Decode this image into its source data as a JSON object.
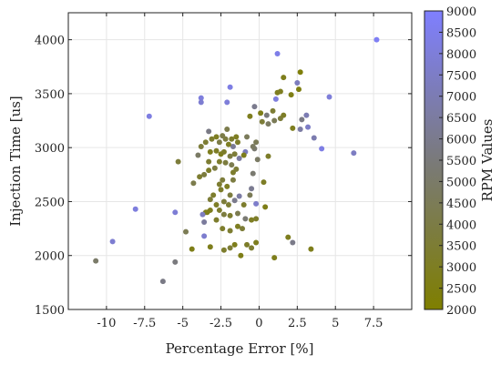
{
  "chart_data": {
    "type": "scatter",
    "xlabel": "Percentage Error [%]",
    "ylabel": "Injection Time [us]",
    "colorbar_label": "RPM Values",
    "xlim": [
      -12.5,
      10
    ],
    "ylim": [
      1500,
      4250
    ],
    "x_ticks": [
      -10,
      -7.5,
      -5,
      -2.5,
      0,
      2.5,
      5,
      7.5
    ],
    "x_tick_labels": [
      "-10",
      "-7.5",
      "-5",
      "-2.5",
      "0",
      "2.5",
      "5",
      "7.5"
    ],
    "y_ticks": [
      1500,
      2000,
      2500,
      3000,
      3500,
      4000
    ],
    "y_tick_labels": [
      "1500",
      "2000",
      "2500",
      "3000",
      "3500",
      "4000"
    ],
    "color_range": [
      2000,
      9000
    ],
    "colorbar_ticks": [
      2000,
      2500,
      3000,
      3500,
      4000,
      4500,
      5000,
      5500,
      6000,
      6500,
      7000,
      7500,
      8000,
      8500,
      9000
    ],
    "colorbar_tick_labels": [
      "2000",
      "2500",
      "3000",
      "3500",
      "4000",
      "4500",
      "5000",
      "5500",
      "6000",
      "6500",
      "7000",
      "7500",
      "8000",
      "8500",
      "9000"
    ],
    "colormap": {
      "low": "#7f7f00",
      "mid": "#7a7a7a",
      "high": "#7f7fff"
    },
    "grid": true,
    "points": [
      {
        "x": 7.7,
        "y": 4000,
        "c": 8700
      },
      {
        "x": 1.2,
        "y": 3870,
        "c": 8400
      },
      {
        "x": -1.9,
        "y": 3560,
        "c": 8300
      },
      {
        "x": -2.1,
        "y": 3420,
        "c": 8000
      },
      {
        "x": -3.8,
        "y": 3460,
        "c": 8100
      },
      {
        "x": -3.8,
        "y": 3420,
        "c": 7800
      },
      {
        "x": -7.2,
        "y": 3290,
        "c": 8200
      },
      {
        "x": 4.6,
        "y": 3470,
        "c": 8000
      },
      {
        "x": 2.5,
        "y": 3600,
        "c": 7300
      },
      {
        "x": 2.7,
        "y": 3700,
        "c": 2300
      },
      {
        "x": 2.6,
        "y": 3540,
        "c": 2500
      },
      {
        "x": 1.6,
        "y": 3650,
        "c": 2800
      },
      {
        "x": 1.2,
        "y": 3510,
        "c": 2900
      },
      {
        "x": 1.4,
        "y": 3520,
        "c": 3000
      },
      {
        "x": 1.1,
        "y": 3450,
        "c": 8100
      },
      {
        "x": 2.1,
        "y": 3490,
        "c": 2600
      },
      {
        "x": 0.9,
        "y": 3340,
        "c": 3500
      },
      {
        "x": 0.5,
        "y": 3300,
        "c": 5500
      },
      {
        "x": 0.1,
        "y": 3320,
        "c": 2700
      },
      {
        "x": -0.3,
        "y": 3380,
        "c": 6000
      },
      {
        "x": -0.6,
        "y": 3290,
        "c": 2900
      },
      {
        "x": 0.2,
        "y": 3240,
        "c": 3600
      },
      {
        "x": 0.6,
        "y": 3220,
        "c": 4800
      },
      {
        "x": 1.0,
        "y": 3250,
        "c": 4500
      },
      {
        "x": 1.4,
        "y": 3270,
        "c": 3700
      },
      {
        "x": 1.6,
        "y": 3300,
        "c": 3100
      },
      {
        "x": 2.2,
        "y": 3180,
        "c": 2900
      },
      {
        "x": 2.7,
        "y": 3170,
        "c": 6600
      },
      {
        "x": 3.2,
        "y": 3190,
        "c": 7500
      },
      {
        "x": 3.1,
        "y": 3300,
        "c": 7000
      },
      {
        "x": 2.8,
        "y": 3260,
        "c": 5800
      },
      {
        "x": 3.6,
        "y": 3090,
        "c": 6900
      },
      {
        "x": 4.1,
        "y": 2990,
        "c": 8300
      },
      {
        "x": 6.2,
        "y": 2950,
        "c": 7400
      },
      {
        "x": -0.2,
        "y": 3050,
        "c": 4500
      },
      {
        "x": -0.3,
        "y": 2990,
        "c": 5200
      },
      {
        "x": -0.4,
        "y": 3010,
        "c": 4800
      },
      {
        "x": -0.9,
        "y": 2960,
        "c": 7200
      },
      {
        "x": -0.8,
        "y": 3100,
        "c": 4600
      },
      {
        "x": -1.4,
        "y": 3050,
        "c": 3200
      },
      {
        "x": -1.5,
        "y": 3100,
        "c": 3000
      },
      {
        "x": -1.7,
        "y": 3010,
        "c": 6200
      },
      {
        "x": -1.8,
        "y": 3080,
        "c": 3300
      },
      {
        "x": -2.0,
        "y": 3030,
        "c": 3000
      },
      {
        "x": -2.1,
        "y": 3170,
        "c": 4200
      },
      {
        "x": -2.2,
        "y": 3080,
        "c": 3800
      },
      {
        "x": -2.4,
        "y": 3110,
        "c": 4100
      },
      {
        "x": -2.6,
        "y": 3050,
        "c": 4000
      },
      {
        "x": -2.8,
        "y": 3100,
        "c": 3000
      },
      {
        "x": -3.1,
        "y": 3080,
        "c": 3300
      },
      {
        "x": -3.3,
        "y": 3150,
        "c": 5800
      },
      {
        "x": -3.5,
        "y": 3050,
        "c": 3500
      },
      {
        "x": -3.8,
        "y": 3010,
        "c": 3700
      },
      {
        "x": -3.2,
        "y": 2960,
        "c": 2900
      },
      {
        "x": -2.8,
        "y": 2970,
        "c": 3100
      },
      {
        "x": -2.5,
        "y": 2940,
        "c": 2800
      },
      {
        "x": -2.3,
        "y": 2960,
        "c": 3200
      },
      {
        "x": -1.9,
        "y": 2920,
        "c": 3900
      },
      {
        "x": -1.6,
        "y": 2940,
        "c": 3600
      },
      {
        "x": -1.3,
        "y": 2900,
        "c": 6500
      },
      {
        "x": -1.0,
        "y": 2930,
        "c": 2800
      },
      {
        "x": -0.1,
        "y": 2890,
        "c": 4900
      },
      {
        "x": 0.6,
        "y": 2920,
        "c": 3200
      },
      {
        "x": -4.0,
        "y": 2930,
        "c": 4900
      },
      {
        "x": -5.3,
        "y": 2870,
        "c": 3700
      },
      {
        "x": -3.3,
        "y": 2870,
        "c": 3500
      },
      {
        "x": -2.6,
        "y": 2870,
        "c": 3300
      },
      {
        "x": -2.2,
        "y": 2860,
        "c": 3800
      },
      {
        "x": -1.8,
        "y": 2840,
        "c": 4300
      },
      {
        "x": -1.5,
        "y": 2800,
        "c": 3600
      },
      {
        "x": -1.7,
        "y": 2770,
        "c": 3300
      },
      {
        "x": -2.9,
        "y": 2810,
        "c": 3900
      },
      {
        "x": -3.3,
        "y": 2790,
        "c": 3200
      },
      {
        "x": -3.6,
        "y": 2750,
        "c": 3800
      },
      {
        "x": -3.9,
        "y": 2730,
        "c": 3400
      },
      {
        "x": -4.3,
        "y": 2670,
        "c": 4200
      },
      {
        "x": -2.4,
        "y": 2700,
        "c": 3700
      },
      {
        "x": -1.7,
        "y": 2700,
        "c": 3900
      },
      {
        "x": -0.4,
        "y": 2760,
        "c": 5200
      },
      {
        "x": 0.3,
        "y": 2680,
        "c": 3100
      },
      {
        "x": -0.5,
        "y": 2620,
        "c": 6100
      },
      {
        "x": -0.6,
        "y": 2560,
        "c": 4500
      },
      {
        "x": -1.3,
        "y": 2550,
        "c": 6600
      },
      {
        "x": -1.9,
        "y": 2560,
        "c": 3800
      },
      {
        "x": -2.1,
        "y": 2640,
        "c": 3000
      },
      {
        "x": -2.5,
        "y": 2610,
        "c": 3200
      },
      {
        "x": -2.6,
        "y": 2660,
        "c": 3400
      },
      {
        "x": -3.0,
        "y": 2560,
        "c": 3300
      },
      {
        "x": -3.2,
        "y": 2520,
        "c": 3600
      },
      {
        "x": -2.8,
        "y": 2470,
        "c": 3100
      },
      {
        "x": -2.3,
        "y": 2500,
        "c": 3700
      },
      {
        "x": -2.0,
        "y": 2470,
        "c": 3500
      },
      {
        "x": -1.6,
        "y": 2510,
        "c": 6000
      },
      {
        "x": -1.0,
        "y": 2470,
        "c": 3300
      },
      {
        "x": -0.2,
        "y": 2480,
        "c": 7600
      },
      {
        "x": 0.4,
        "y": 2450,
        "c": 2700
      },
      {
        "x": -3.2,
        "y": 2420,
        "c": 2900
      },
      {
        "x": -3.5,
        "y": 2400,
        "c": 3100
      },
      {
        "x": -3.4,
        "y": 2400,
        "c": 2700
      },
      {
        "x": -2.6,
        "y": 2420,
        "c": 3300
      },
      {
        "x": -3.7,
        "y": 2380,
        "c": 7300
      },
      {
        "x": -5.5,
        "y": 2400,
        "c": 7900
      },
      {
        "x": -8.1,
        "y": 2430,
        "c": 8100
      },
      {
        "x": -2.3,
        "y": 2380,
        "c": 3800
      },
      {
        "x": -1.9,
        "y": 2370,
        "c": 3400
      },
      {
        "x": -1.4,
        "y": 2390,
        "c": 4300
      },
      {
        "x": -0.9,
        "y": 2340,
        "c": 5300
      },
      {
        "x": -0.5,
        "y": 2330,
        "c": 3000
      },
      {
        "x": -0.2,
        "y": 2340,
        "c": 3200
      },
      {
        "x": -2.8,
        "y": 2330,
        "c": 3300
      },
      {
        "x": -3.6,
        "y": 2310,
        "c": 6400
      },
      {
        "x": -1.4,
        "y": 2270,
        "c": 3000
      },
      {
        "x": -1.1,
        "y": 2250,
        "c": 3600
      },
      {
        "x": -2.4,
        "y": 2250,
        "c": 3300
      },
      {
        "x": -1.9,
        "y": 2230,
        "c": 3400
      },
      {
        "x": -4.8,
        "y": 2220,
        "c": 4400
      },
      {
        "x": -3.6,
        "y": 2180,
        "c": 7700
      },
      {
        "x": -9.6,
        "y": 2130,
        "c": 7800
      },
      {
        "x": 1.9,
        "y": 2170,
        "c": 2900
      },
      {
        "x": 2.2,
        "y": 2120,
        "c": 5900
      },
      {
        "x": -0.2,
        "y": 2120,
        "c": 2900
      },
      {
        "x": -0.8,
        "y": 2100,
        "c": 3200
      },
      {
        "x": -0.5,
        "y": 2070,
        "c": 3400
      },
      {
        "x": -1.6,
        "y": 2100,
        "c": 2800
      },
      {
        "x": -1.9,
        "y": 2070,
        "c": 3600
      },
      {
        "x": -2.3,
        "y": 2050,
        "c": 3300
      },
      {
        "x": -3.2,
        "y": 2080,
        "c": 2800
      },
      {
        "x": -4.4,
        "y": 2060,
        "c": 2700
      },
      {
        "x": 3.4,
        "y": 2060,
        "c": 2800
      },
      {
        "x": -1.2,
        "y": 2000,
        "c": 2700
      },
      {
        "x": 1.0,
        "y": 1980,
        "c": 2800
      },
      {
        "x": -10.7,
        "y": 1950,
        "c": 5000
      },
      {
        "x": -5.5,
        "y": 1940,
        "c": 5600
      },
      {
        "x": -6.3,
        "y": 1760,
        "c": 5800
      }
    ]
  }
}
